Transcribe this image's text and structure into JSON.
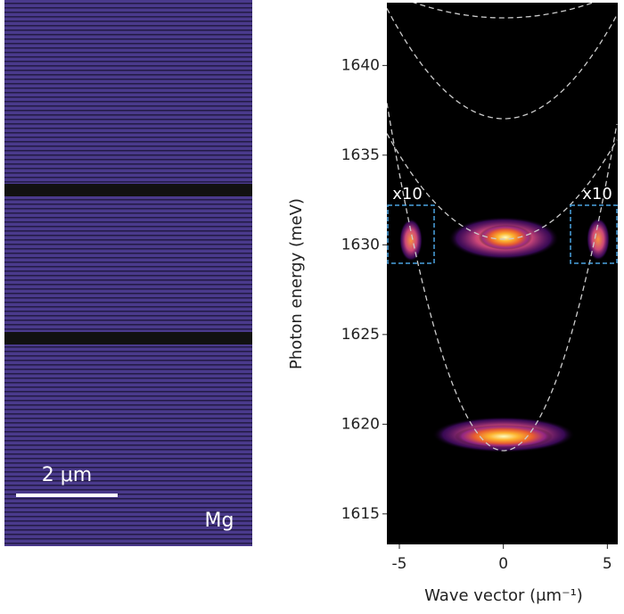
{
  "micrograph": {
    "scale_bar": "2 μm",
    "label": "Mg"
  },
  "chart_data": {
    "type": "heatmap",
    "xlabel": "Wave vector (μm⁻¹)",
    "ylabel": "Photon energy (meV)",
    "xlim": [
      -5.6,
      5.5
    ],
    "ylim": [
      1613.3,
      1643.5
    ],
    "xticks": [
      -5,
      0,
      5
    ],
    "yticks": [
      1615,
      1620,
      1625,
      1630,
      1635,
      1640
    ],
    "annotations": [
      "x10",
      "x10"
    ]
  }
}
